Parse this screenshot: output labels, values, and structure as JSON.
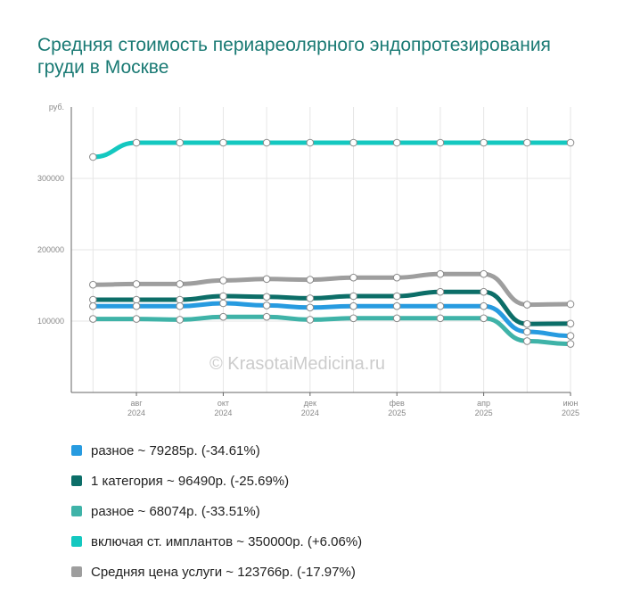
{
  "title": "Средняя стоимость периареолярного эндопротезирования груди в Москве",
  "watermark": "© KrasotaiMedicina.ru",
  "chart_data": {
    "type": "line",
    "title": "Средняя стоимость периареолярного эндопротезирования груди в Москве",
    "ylabel": "руб.",
    "ylim": [
      0,
      400000
    ],
    "yticks": [
      "100000",
      "200000",
      "300000"
    ],
    "xticks": [
      {
        "idx": 1,
        "month": "авг",
        "year": "2024"
      },
      {
        "idx": 3,
        "month": "окт",
        "year": "2024"
      },
      {
        "idx": 5,
        "month": "дек",
        "year": "2024"
      },
      {
        "idx": 7,
        "month": "фев",
        "year": "2025"
      },
      {
        "idx": 9,
        "month": "апр",
        "year": "2025"
      },
      {
        "idx": 11,
        "month": "июн",
        "year": "2025"
      }
    ],
    "x": [
      "июл 2024",
      "авг 2024",
      "сен 2024",
      "окт 2024",
      "ноя 2024",
      "дек 2024",
      "янв 2025",
      "фев 2025",
      "мар 2025",
      "апр 2025",
      "май 2025",
      "июн 2025"
    ],
    "grid": true,
    "legend_position": "bottom",
    "series": [
      {
        "name": "включая ст. имплантов ~ 350000р. (+6.06%)",
        "color": "#14c8c0",
        "values": [
          330000,
          350000,
          350000,
          350000,
          350000,
          350000,
          350000,
          350000,
          350000,
          350000,
          350000,
          350000
        ]
      },
      {
        "name": "Средняя цена услуги ~ 123766р. (-17.97%)",
        "color": "#9e9e9e",
        "values": [
          151000,
          152000,
          152000,
          157000,
          159000,
          158000,
          161000,
          161000,
          166000,
          166000,
          123000,
          123766
        ]
      },
      {
        "name": "1 категория ~ 96490р. (-25.69%)",
        "color": "#0c6e68",
        "values": [
          130000,
          130000,
          130000,
          135000,
          134000,
          132000,
          135000,
          135000,
          141000,
          141000,
          96000,
          96490
        ]
      },
      {
        "name": "разное ~ 79285р. (-34.61%)",
        "color": "#279be0",
        "values": [
          121000,
          121000,
          121000,
          125000,
          122000,
          119000,
          121000,
          121000,
          121000,
          121000,
          85000,
          79285
        ]
      },
      {
        "name": "разное ~ 68074р. (-33.51%)",
        "color": "#3fb3a8",
        "values": [
          103000,
          103000,
          102000,
          106000,
          106000,
          102000,
          104000,
          104000,
          104000,
          104000,
          72000,
          68074
        ]
      }
    ]
  },
  "legend": [
    {
      "label": "разное ~ 79285р. (-34.61%)",
      "color": "#279be0"
    },
    {
      "label": "1 категория ~ 96490р. (-25.69%)",
      "color": "#0c6e68"
    },
    {
      "label": "разное ~ 68074р. (-33.51%)",
      "color": "#3fb3a8"
    },
    {
      "label": "включая ст. имплантов ~ 350000р. (+6.06%)",
      "color": "#14c8c0"
    },
    {
      "label": "Средняя цена услуги ~ 123766р. (-17.97%)",
      "color": "#9e9e9e"
    }
  ]
}
